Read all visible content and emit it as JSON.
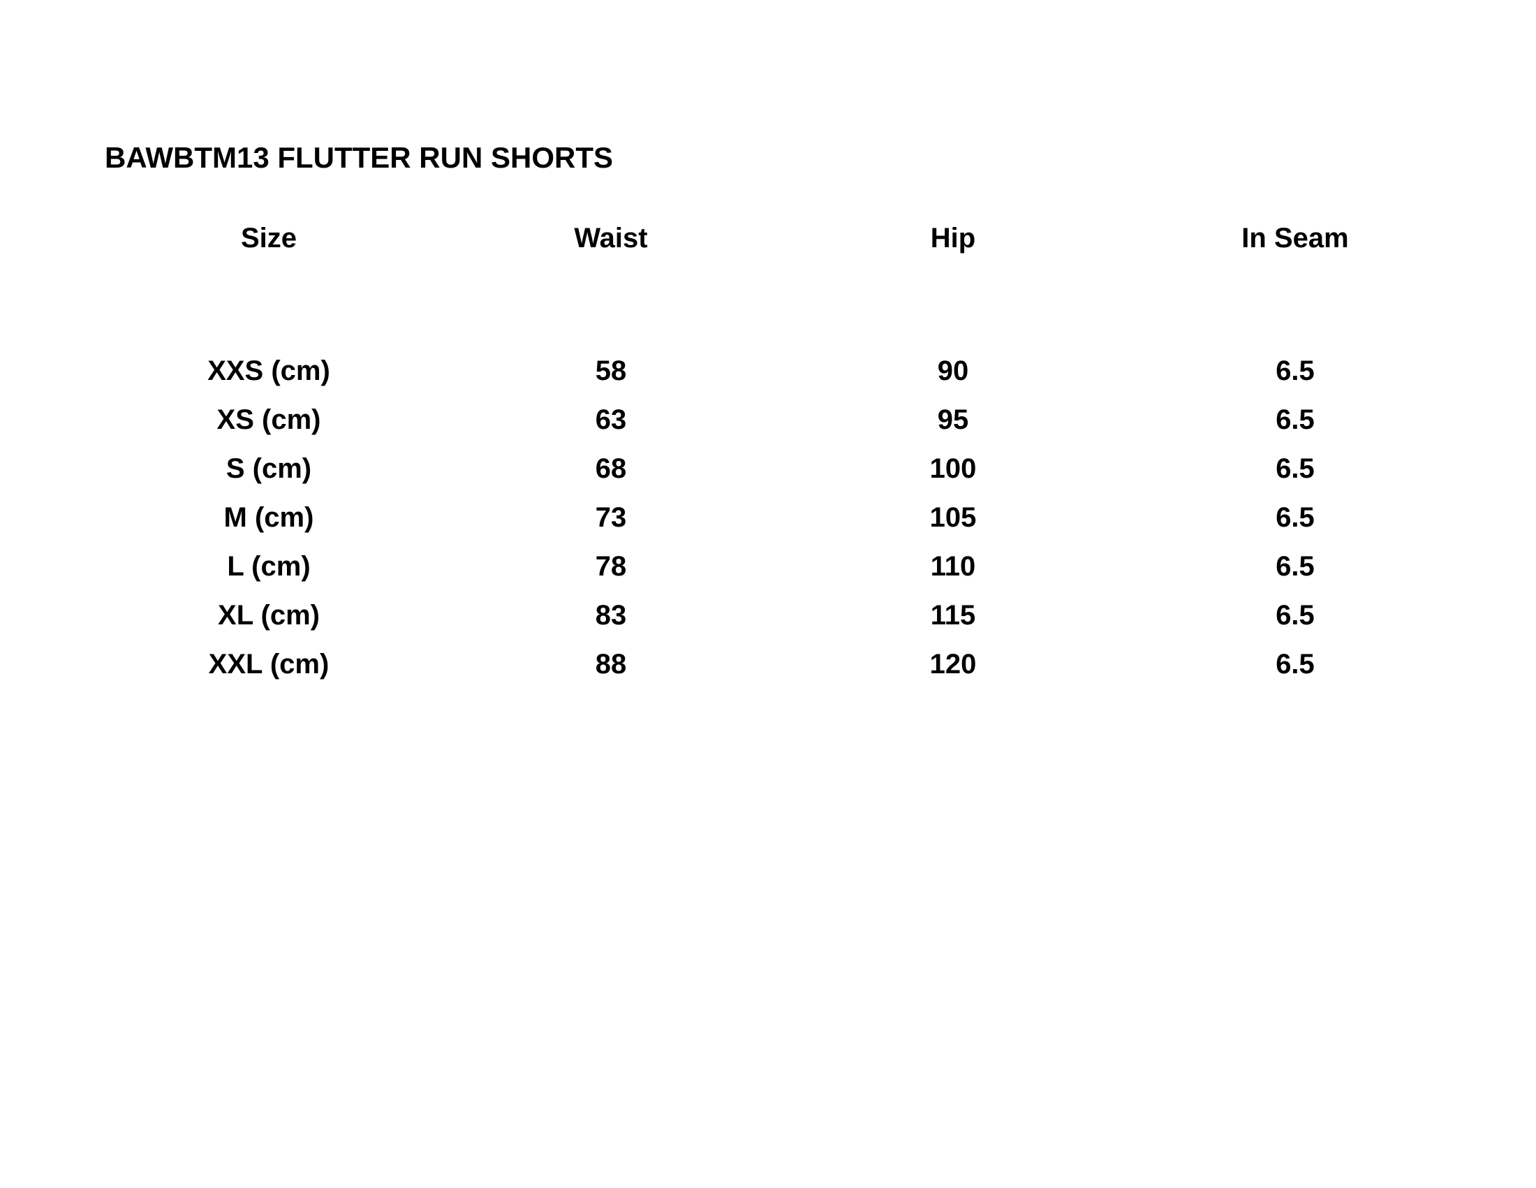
{
  "title": "BAWBTM13 FLUTTER RUN SHORTS",
  "table": {
    "headers": [
      "Size",
      "Waist",
      "Hip",
      "In Seam"
    ],
    "rows": [
      [
        "XXS (cm)",
        "58",
        "90",
        "6.5"
      ],
      [
        "XS (cm)",
        "63",
        "95",
        "6.5"
      ],
      [
        "S (cm)",
        "68",
        "100",
        "6.5"
      ],
      [
        "M (cm)",
        "73",
        "105",
        "6.5"
      ],
      [
        "L (cm)",
        "78",
        "110",
        "6.5"
      ],
      [
        "XL (cm)",
        "83",
        "115",
        "6.5"
      ],
      [
        "XXL (cm)",
        "88",
        "120",
        "6.5"
      ]
    ]
  }
}
